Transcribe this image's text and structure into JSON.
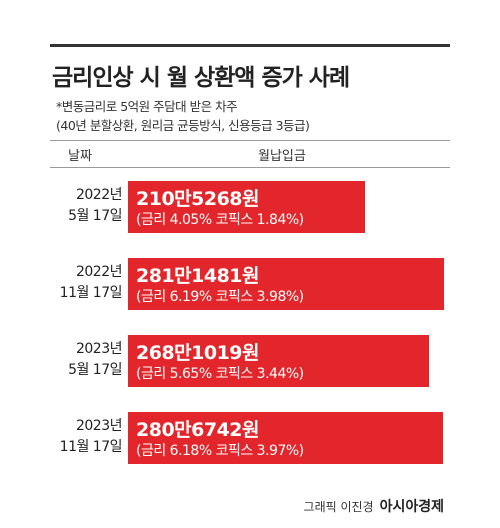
{
  "chart_data": {
    "type": "bar",
    "title": "금리인상 시 월 상환액 증가 사례",
    "notes": [
      "*변동금리로 5억원 주담대 받은 차주",
      "(40년 분할상환, 원리금 균등방식, 신용등급 3등급)"
    ],
    "column_headers": [
      "날짜",
      "월납입금"
    ],
    "categories": [
      "2022년\n5월 17일",
      "2022년\n11월 17일",
      "2023년\n5월 17일",
      "2023년\n11월 17일"
    ],
    "values": [
      2105268,
      2811481,
      2681019,
      2806742
    ],
    "value_labels": [
      "210만5268원",
      "281만1481원",
      "268만1019원",
      "280만6742원"
    ],
    "rate_labels": [
      "(금리 4.05% 코픽스 1.84%)",
      "(금리 6.19% 코픽스 3.98%)",
      "(금리 5.65% 코픽스 3.44%)",
      "(금리 6.18% 코픽스 3.97%)"
    ],
    "color": "#e3262b",
    "credit": "그래픽 이진경",
    "source": "아시아경제"
  }
}
